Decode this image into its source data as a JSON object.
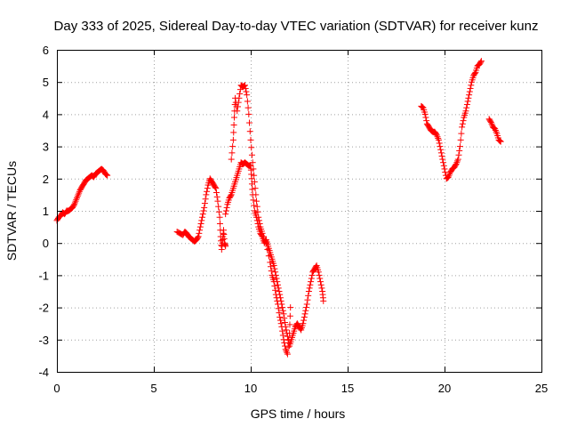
{
  "chart_data": {
    "type": "scatter",
    "title": "Day 333 of 2025, Sidereal Day-to-day VTEC variation (SDTVAR) for receiver kunz",
    "xlabel": "GPS time / hours",
    "ylabel": "SDTVAR / TECUs",
    "xlim": [
      0,
      25
    ],
    "ylim": [
      -4,
      6
    ],
    "xticks": [
      0,
      5,
      10,
      15,
      20,
      25
    ],
    "yticks": [
      -4,
      -3,
      -2,
      -1,
      0,
      1,
      2,
      3,
      4,
      5,
      6
    ],
    "grid": true,
    "marker": "plus",
    "color": "#ff0000",
    "segments": [
      [
        [
          0.0,
          0.7
        ],
        [
          0.1,
          0.8
        ],
        [
          0.2,
          0.85
        ],
        [
          0.3,
          0.95
        ],
        [
          0.4,
          0.9
        ],
        [
          0.5,
          1.0
        ],
        [
          0.6,
          1.0
        ],
        [
          0.7,
          1.05
        ],
        [
          0.8,
          1.1
        ],
        [
          0.9,
          1.2
        ],
        [
          1.0,
          1.35
        ],
        [
          1.1,
          1.5
        ],
        [
          1.2,
          1.65
        ],
        [
          1.3,
          1.75
        ],
        [
          1.4,
          1.85
        ],
        [
          1.5,
          1.95
        ],
        [
          1.6,
          2.0
        ],
        [
          1.7,
          2.05
        ],
        [
          1.8,
          2.1
        ],
        [
          1.9,
          2.05
        ],
        [
          2.0,
          2.15
        ],
        [
          2.1,
          2.2
        ],
        [
          2.2,
          2.25
        ],
        [
          2.3,
          2.3
        ],
        [
          2.4,
          2.25
        ],
        [
          2.5,
          2.15
        ],
        [
          2.6,
          2.1
        ]
      ],
      [
        [
          6.2,
          0.35
        ],
        [
          6.35,
          0.3
        ],
        [
          6.5,
          0.25
        ],
        [
          6.6,
          0.35
        ],
        [
          6.7,
          0.3
        ],
        [
          6.8,
          0.2
        ],
        [
          6.9,
          0.15
        ],
        [
          7.0,
          0.1
        ],
        [
          7.1,
          0.05
        ],
        [
          7.2,
          0.1
        ],
        [
          7.3,
          0.2
        ],
        [
          7.4,
          0.5
        ],
        [
          7.5,
          0.8
        ],
        [
          7.6,
          1.1
        ],
        [
          7.7,
          1.5
        ],
        [
          7.8,
          1.8
        ],
        [
          7.9,
          2.0
        ],
        [
          8.0,
          1.9
        ],
        [
          8.1,
          1.8
        ],
        [
          8.2,
          1.7
        ],
        [
          8.3,
          1.3
        ],
        [
          8.4,
          0.8
        ],
        [
          8.45,
          0.2
        ],
        [
          8.5,
          -0.2
        ],
        [
          8.55,
          0.1
        ],
        [
          8.6,
          0.4
        ],
        [
          8.65,
          0.0
        ],
        [
          8.7,
          -0.1
        ]
      ],
      [
        [
          8.7,
          0.9
        ],
        [
          8.8,
          1.2
        ],
        [
          8.9,
          1.4
        ],
        [
          9.0,
          1.5
        ],
        [
          9.1,
          1.7
        ],
        [
          9.2,
          1.9
        ],
        [
          9.3,
          2.1
        ],
        [
          9.4,
          2.3
        ],
        [
          9.5,
          2.5
        ],
        [
          9.6,
          2.45
        ],
        [
          9.7,
          2.5
        ],
        [
          9.8,
          2.45
        ],
        [
          9.9,
          2.4
        ],
        [
          10.0,
          2.4
        ],
        [
          10.05,
          2.0
        ],
        [
          10.1,
          1.5
        ],
        [
          10.2,
          1.0
        ],
        [
          10.3,
          0.8
        ],
        [
          10.4,
          0.5
        ],
        [
          10.5,
          0.3
        ],
        [
          10.6,
          0.2
        ],
        [
          10.7,
          0.0
        ],
        [
          10.8,
          0.1
        ],
        [
          10.9,
          -0.1
        ],
        [
          11.0,
          -0.3
        ],
        [
          11.1,
          -0.5
        ],
        [
          11.2,
          -0.7
        ],
        [
          11.3,
          -1.0
        ],
        [
          11.4,
          -1.3
        ],
        [
          11.5,
          -1.6
        ],
        [
          11.6,
          -1.9
        ],
        [
          11.7,
          -2.2
        ],
        [
          11.8,
          -2.6
        ],
        [
          11.9,
          -2.9
        ],
        [
          12.0,
          -3.2
        ],
        [
          12.1,
          -3.0
        ],
        [
          12.2,
          -2.8
        ],
        [
          12.3,
          -2.6
        ],
        [
          12.4,
          -2.5
        ],
        [
          12.5,
          -2.6
        ],
        [
          12.6,
          -2.7
        ],
        [
          12.7,
          -2.5
        ],
        [
          12.8,
          -2.2
        ],
        [
          12.9,
          -1.9
        ],
        [
          13.0,
          -1.5
        ],
        [
          13.1,
          -1.2
        ],
        [
          13.2,
          -0.9
        ],
        [
          13.3,
          -0.8
        ],
        [
          13.4,
          -0.7
        ],
        [
          13.5,
          -0.9
        ],
        [
          13.6,
          -1.2
        ],
        [
          13.7,
          -1.5
        ],
        [
          13.75,
          -1.8
        ]
      ],
      [
        [
          9.0,
          2.6
        ],
        [
          9.1,
          3.2
        ],
        [
          9.15,
          3.9
        ],
        [
          9.2,
          4.5
        ],
        [
          9.3,
          4.1
        ],
        [
          9.4,
          4.5
        ],
        [
          9.5,
          4.9
        ],
        [
          9.6,
          4.85
        ],
        [
          9.7,
          4.9
        ],
        [
          9.8,
          4.6
        ],
        [
          9.9,
          4.0
        ],
        [
          10.0,
          3.2
        ],
        [
          10.1,
          2.5
        ],
        [
          10.2,
          1.9
        ],
        [
          10.3,
          1.3
        ],
        [
          10.4,
          0.8
        ],
        [
          10.5,
          0.5
        ],
        [
          10.6,
          0.3
        ],
        [
          10.8,
          0.0
        ],
        [
          11.0,
          -0.6
        ],
        [
          11.1,
          -1.0
        ],
        [
          11.2,
          -1.2
        ],
        [
          11.3,
          -1.6
        ],
        [
          11.4,
          -1.9
        ],
        [
          11.5,
          -2.3
        ],
        [
          11.6,
          -2.6
        ],
        [
          11.7,
          -3.0
        ],
        [
          11.8,
          -3.3
        ],
        [
          11.9,
          -3.45
        ],
        [
          12.0,
          -2.8
        ],
        [
          12.05,
          -2.0
        ]
      ],
      [
        [
          18.8,
          4.25
        ],
        [
          18.9,
          4.2
        ],
        [
          19.0,
          4.0
        ],
        [
          19.1,
          3.7
        ],
        [
          19.2,
          3.6
        ],
        [
          19.3,
          3.5
        ],
        [
          19.4,
          3.45
        ],
        [
          19.5,
          3.45
        ],
        [
          19.6,
          3.35
        ],
        [
          19.7,
          3.2
        ],
        [
          19.8,
          2.9
        ],
        [
          19.9,
          2.6
        ],
        [
          20.0,
          2.3
        ],
        [
          20.1,
          2.0
        ],
        [
          20.2,
          2.05
        ],
        [
          20.3,
          2.2
        ],
        [
          20.4,
          2.3
        ],
        [
          20.5,
          2.35
        ],
        [
          20.6,
          2.45
        ],
        [
          20.7,
          2.6
        ],
        [
          20.8,
          3.0
        ],
        [
          20.9,
          3.6
        ],
        [
          21.0,
          3.9
        ],
        [
          21.1,
          4.1
        ],
        [
          21.2,
          4.4
        ],
        [
          21.3,
          4.7
        ],
        [
          21.4,
          5.0
        ],
        [
          21.5,
          5.2
        ],
        [
          21.6,
          5.3
        ],
        [
          21.7,
          5.5
        ],
        [
          21.8,
          5.55
        ],
        [
          21.9,
          5.65
        ]
      ],
      [
        [
          22.3,
          3.85
        ],
        [
          22.4,
          3.75
        ],
        [
          22.5,
          3.6
        ],
        [
          22.6,
          3.55
        ],
        [
          22.7,
          3.4
        ],
        [
          22.8,
          3.2
        ],
        [
          22.9,
          3.15
        ]
      ]
    ]
  }
}
